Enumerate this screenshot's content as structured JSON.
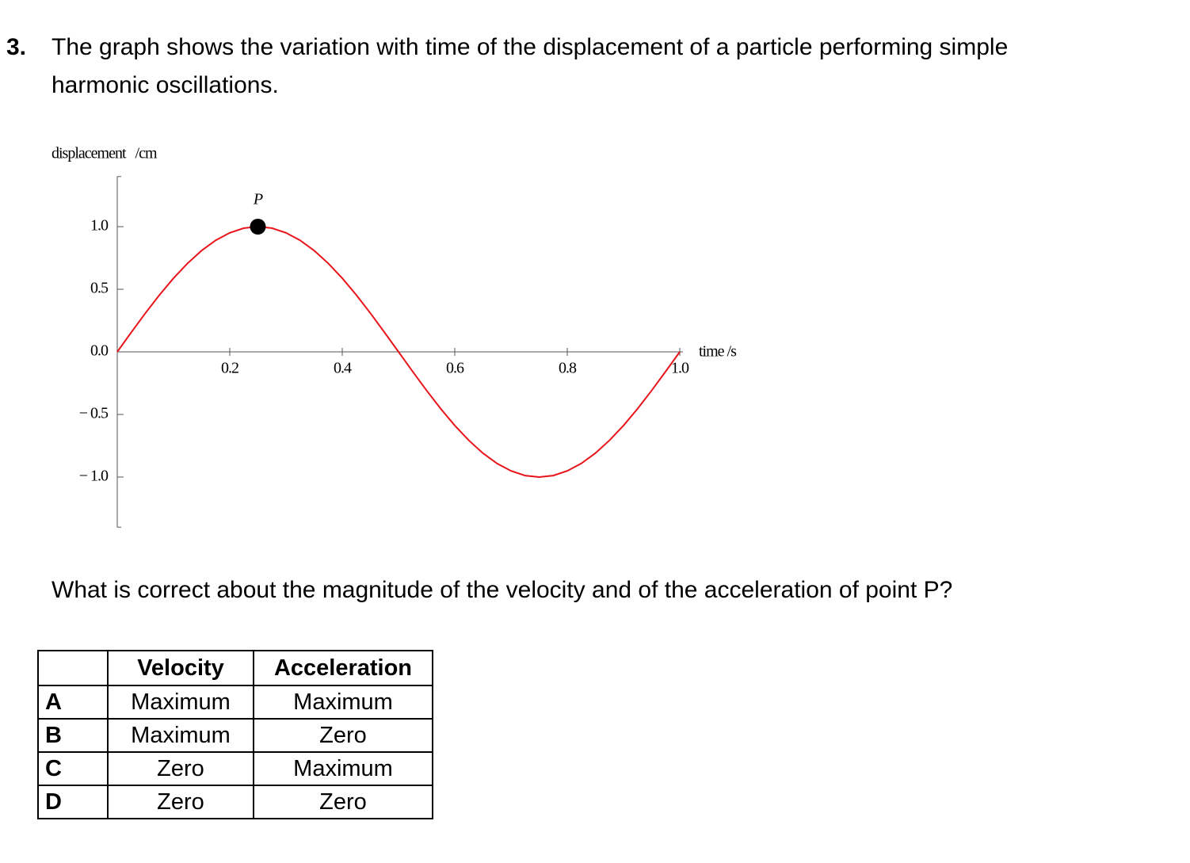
{
  "question": {
    "number": "3.",
    "text": "The graph shows the variation with time of the displacement of a particle performing simple harmonic oscillations."
  },
  "chart_data": {
    "type": "line",
    "y_label": "displacement   /cm",
    "x_label": "time /s",
    "x": [
      0,
      0.025,
      0.05,
      0.075,
      0.1,
      0.125,
      0.15,
      0.175,
      0.2,
      0.225,
      0.25,
      0.275,
      0.3,
      0.325,
      0.35,
      0.375,
      0.4,
      0.425,
      0.45,
      0.475,
      0.5,
      0.525,
      0.55,
      0.575,
      0.6,
      0.625,
      0.65,
      0.675,
      0.7,
      0.725,
      0.75,
      0.775,
      0.8,
      0.825,
      0.85,
      0.875,
      0.9,
      0.925,
      0.95,
      0.975,
      1
    ],
    "values": [
      0,
      0.156,
      0.309,
      0.454,
      0.588,
      0.707,
      0.809,
      0.891,
      0.951,
      0.988,
      1,
      0.988,
      0.951,
      0.891,
      0.809,
      0.707,
      0.588,
      0.454,
      0.309,
      0.156,
      0,
      -0.156,
      -0.309,
      -0.454,
      -0.588,
      -0.707,
      -0.809,
      -0.891,
      -0.951,
      -0.988,
      -1,
      -0.988,
      -0.951,
      -0.891,
      -0.809,
      -0.707,
      -0.588,
      -0.454,
      -0.309,
      -0.156,
      0
    ],
    "color": "#e8141b",
    "points": [
      {
        "label": "P",
        "x": 0.25,
        "y": 1
      }
    ],
    "xlim": [
      0,
      1
    ],
    "ylim": [
      -1.4,
      1.4
    ],
    "xticks": [
      0.2,
      0.4,
      0.6,
      0.8,
      {
        "value": 1,
        "label": "1.0"
      }
    ],
    "yticks": [
      {
        "value": 1,
        "label": "1.0"
      },
      0.5,
      {
        "value": 0,
        "label": "0.0"
      },
      {
        "value": -0.5,
        "label": "− 0.5"
      },
      {
        "value": -1,
        "label": "− 1.0"
      }
    ]
  },
  "prompt": "What is correct about the magnitude of the velocity and of the acceleration of point P?",
  "table": {
    "header": [
      "Velocity",
      "Acceleration"
    ],
    "rows": [
      [
        "A",
        "Maximum",
        "Maximum"
      ],
      [
        "B",
        "Maximum",
        "Zero"
      ],
      [
        "C",
        "Zero",
        "Maximum"
      ],
      [
        "D",
        "Zero",
        "Zero"
      ]
    ]
  }
}
